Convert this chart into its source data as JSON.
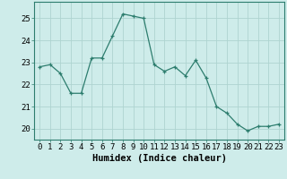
{
  "x": [
    0,
    1,
    2,
    3,
    4,
    5,
    6,
    7,
    8,
    9,
    10,
    11,
    12,
    13,
    14,
    15,
    16,
    17,
    18,
    19,
    20,
    21,
    22,
    23
  ],
  "y": [
    22.8,
    22.9,
    22.5,
    21.6,
    21.6,
    23.2,
    23.2,
    24.2,
    25.2,
    25.1,
    25.0,
    22.9,
    22.6,
    22.8,
    22.4,
    23.1,
    22.3,
    21.0,
    20.7,
    20.2,
    19.9,
    20.1,
    20.1,
    20.2
  ],
  "xlabel": "Humidex (Indice chaleur)",
  "ylim": [
    19.5,
    25.75
  ],
  "xlim": [
    -0.5,
    23.5
  ],
  "yticks": [
    20,
    21,
    22,
    23,
    24,
    25
  ],
  "xticks": [
    0,
    1,
    2,
    3,
    4,
    5,
    6,
    7,
    8,
    9,
    10,
    11,
    12,
    13,
    14,
    15,
    16,
    17,
    18,
    19,
    20,
    21,
    22,
    23
  ],
  "line_color": "#2d7d6e",
  "marker": "+",
  "bg_color": "#ceecea",
  "grid_color": "#aed4d0",
  "label_fontsize": 7.5,
  "tick_fontsize": 6.5,
  "markersize": 3.5,
  "linewidth": 0.9
}
